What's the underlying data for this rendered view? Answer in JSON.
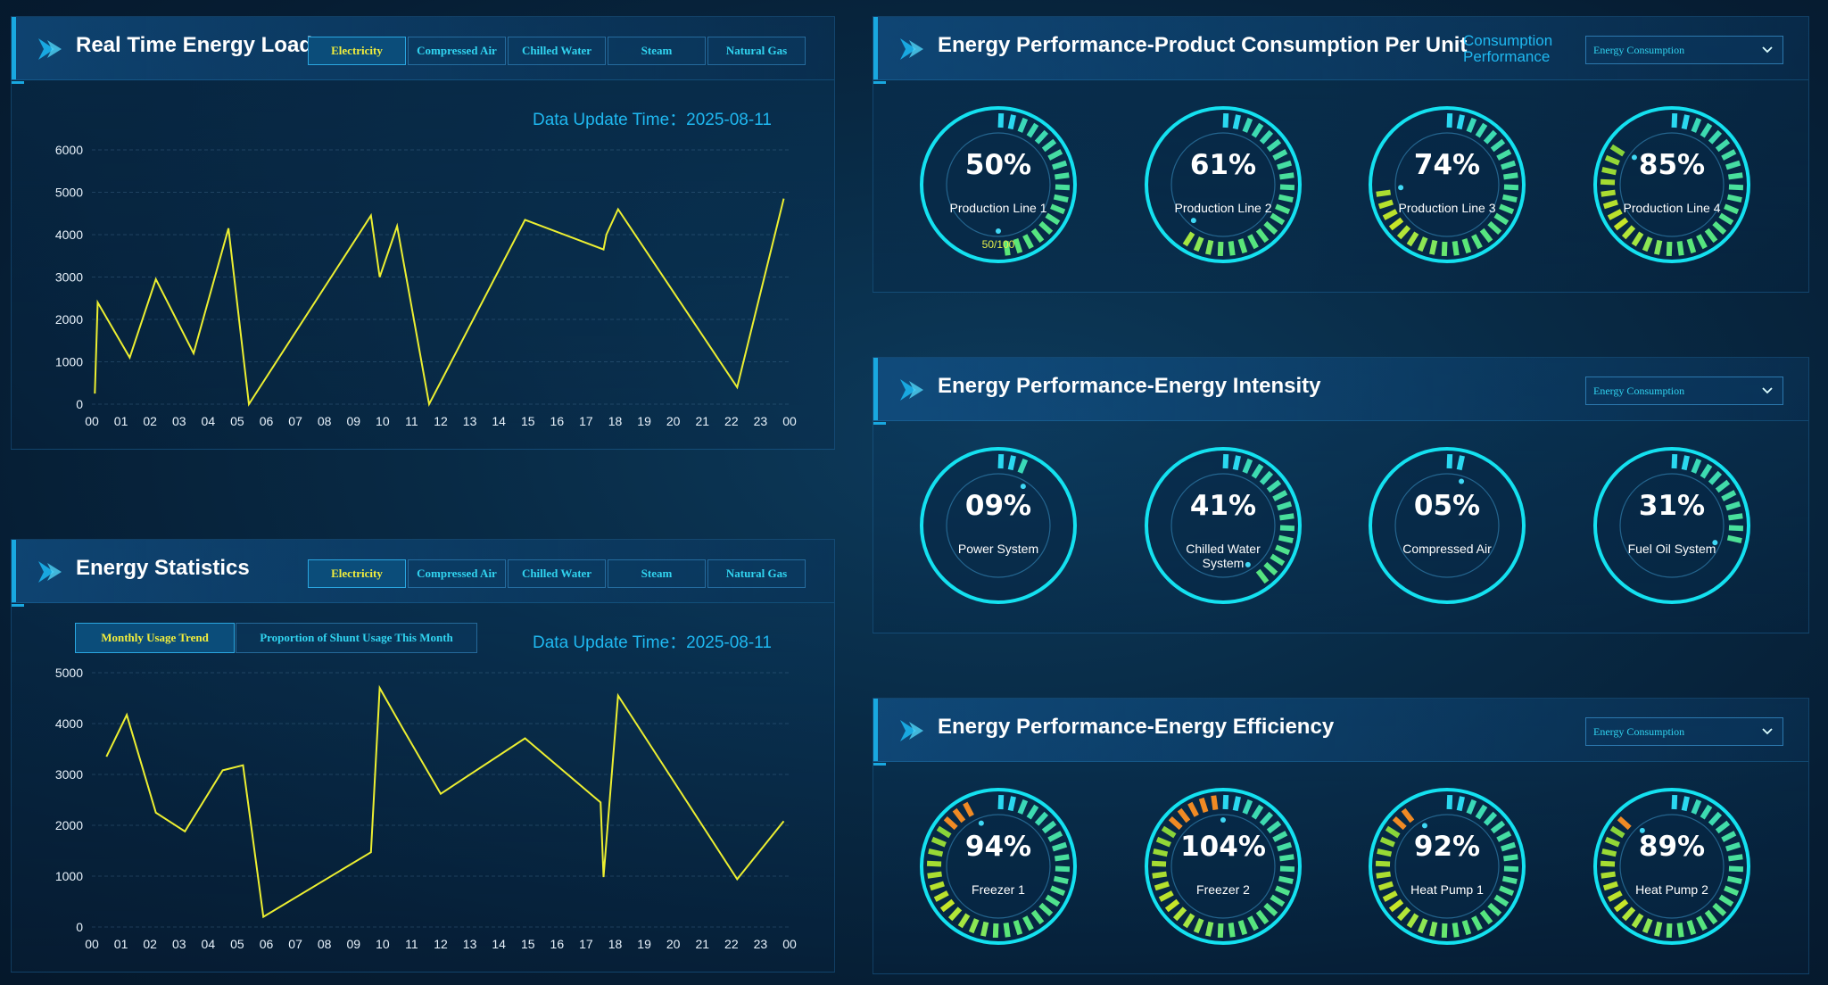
{
  "tabs": [
    "Electricity",
    "Compressed Air",
    "Chilled Water",
    "Steam",
    "Natural Gas"
  ],
  "realtime": {
    "title": "Real Time Energy Load",
    "update": "Data Update Time：2025-08-11"
  },
  "stats": {
    "title": "Energy Statistics",
    "subtabs": [
      "Monthly Usage Trend",
      "Proportion of Shunt Usage This Month"
    ],
    "update": "Data Update Time：2025-08-11"
  },
  "product": {
    "title": "Energy Performance-Product Consumption Per Unit",
    "perf_label": "Consumption Performance",
    "select": "Energy Consumption",
    "gauges": [
      {
        "pct": "50%",
        "label": "Production Line 1",
        "sub": "50/100",
        "value": 0.5,
        "danger": 0
      },
      {
        "pct": "61%",
        "label": "Production Line 2",
        "sub": "",
        "value": 0.61,
        "danger": 0
      },
      {
        "pct": "74%",
        "label": "Production Line 3",
        "sub": "",
        "value": 0.74,
        "danger": 0
      },
      {
        "pct": "85%",
        "label": "Production Line 4",
        "sub": "",
        "value": 0.85,
        "danger": 2
      }
    ]
  },
  "intensity": {
    "title": "Energy Performance-Energy Intensity",
    "select": "Energy Consumption",
    "gauges": [
      {
        "pct": "09%",
        "label": "Power System",
        "value": 0.09
      },
      {
        "pct": "41%",
        "label": "Chilled Water System",
        "value": 0.41
      },
      {
        "pct": "05%",
        "label": "Compressed Air",
        "value": 0.05
      },
      {
        "pct": "31%",
        "label": "Fuel Oil System",
        "value": 0.31
      }
    ]
  },
  "efficiency": {
    "title": "Energy Performance-Energy Efficiency",
    "select": "Energy Consumption",
    "gauges": [
      {
        "pct": "94%",
        "label": "Freezer 1",
        "value": 0.94
      },
      {
        "pct": "104%",
        "label": "Freezer 2",
        "value": 1.0
      },
      {
        "pct": "92%",
        "label": "Heat Pump 1",
        "value": 0.92
      },
      {
        "pct": "89%",
        "label": "Heat Pump 2",
        "value": 0.89
      }
    ]
  },
  "chart_data": [
    {
      "type": "line",
      "x": [
        "00",
        "01",
        "02",
        "03",
        "04",
        "05",
        "06",
        "07",
        "08",
        "09",
        "10",
        "11",
        "12",
        "13",
        "14",
        "15",
        "16",
        "17",
        "18",
        "19",
        "20",
        "21",
        "22",
        "23",
        "00"
      ],
      "ylim": [
        0,
        6000
      ],
      "yticks": [
        0,
        1000,
        2000,
        3000,
        4000,
        5000,
        6000
      ],
      "points": [
        [
          0.1,
          250
        ],
        [
          0.2,
          2400
        ],
        [
          1.3,
          1100
        ],
        [
          2.2,
          2950
        ],
        [
          3.5,
          1200
        ],
        [
          4.7,
          4150
        ],
        [
          5.4,
          0
        ],
        [
          9.6,
          4450
        ],
        [
          9.9,
          3000
        ],
        [
          10.5,
          4200
        ],
        [
          11.6,
          0
        ],
        [
          14.9,
          4350
        ],
        [
          17.6,
          3650
        ],
        [
          17.7,
          4000
        ],
        [
          18.1,
          4600
        ],
        [
          22.2,
          400
        ],
        [
          23.8,
          4850
        ]
      ],
      "color": "#ecef31",
      "grid": true
    },
    {
      "type": "line",
      "x": [
        "00",
        "01",
        "02",
        "03",
        "04",
        "05",
        "06",
        "07",
        "08",
        "09",
        "10",
        "11",
        "12",
        "13",
        "14",
        "15",
        "16",
        "17",
        "18",
        "19",
        "20",
        "21",
        "22",
        "23",
        "00"
      ],
      "ylim": [
        0,
        5000
      ],
      "yticks": [
        0,
        1000,
        2000,
        3000,
        4000,
        5000
      ],
      "points": [
        [
          0.5,
          3350
        ],
        [
          1.2,
          4170
        ],
        [
          2.2,
          2250
        ],
        [
          3.2,
          1880
        ],
        [
          4.5,
          3080
        ],
        [
          5.2,
          3180
        ],
        [
          5.9,
          200
        ],
        [
          9.6,
          1470
        ],
        [
          9.9,
          4700
        ],
        [
          10.7,
          3900
        ],
        [
          12.0,
          2620
        ],
        [
          14.9,
          3710
        ],
        [
          17.5,
          2450
        ],
        [
          17.6,
          980
        ],
        [
          18.1,
          4550
        ],
        [
          22.2,
          940
        ],
        [
          23.8,
          2080
        ]
      ],
      "color": "#ecef31",
      "grid": true
    }
  ]
}
